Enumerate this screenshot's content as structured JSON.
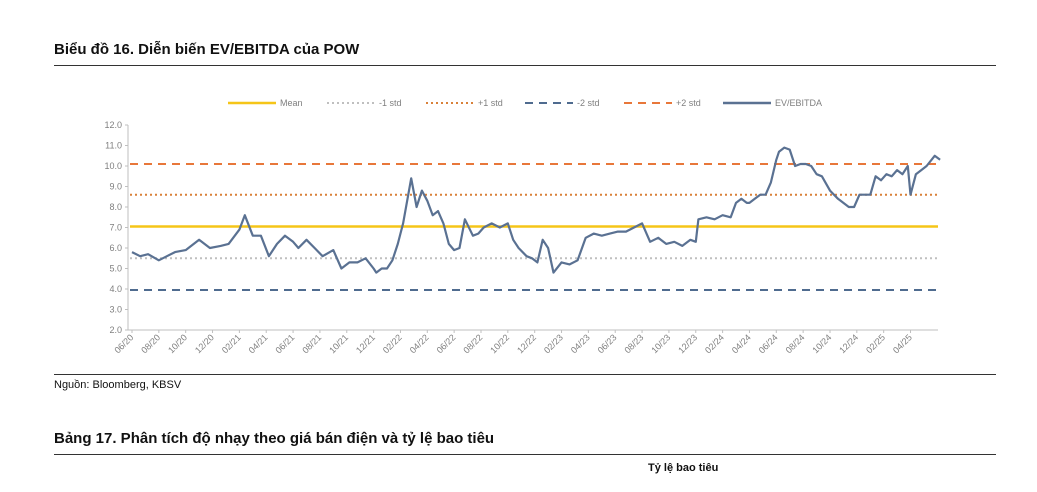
{
  "figure_title": "Biểu đồ 16. Diễn biến EV/EBITDA của POW",
  "source": "Nguồn: Bloomberg, KBSV",
  "table_title": "Bảng 17. Phân tích độ nhạy theo giá bán điện và tỷ lệ bao tiêu",
  "table_header": "Tỷ lệ bao tiêu",
  "chart_data": {
    "type": "line",
    "title": "",
    "xlabel": "",
    "ylabel": "",
    "ylim": [
      2.0,
      12.0
    ],
    "yticks": [
      "2.0",
      "3.0",
      "4.0",
      "5.0",
      "6.0",
      "7.0",
      "8.0",
      "9.0",
      "10.0",
      "11.0",
      "12.0"
    ],
    "xticks": [
      "06/20",
      "08/20",
      "10/20",
      "12/20",
      "02/21",
      "04/21",
      "06/21",
      "08/21",
      "10/21",
      "12/21",
      "02/22",
      "04/22",
      "06/22",
      "08/22",
      "10/22",
      "12/22",
      "02/23",
      "04/23",
      "06/23",
      "08/23",
      "10/23",
      "12/23",
      "02/24",
      "04/24",
      "06/24",
      "08/24",
      "10/24",
      "12/24",
      "02/25",
      "04/25"
    ],
    "legend_position": "top",
    "grid": false,
    "colors": {
      "mean": "#f5c518",
      "minus1": "#bfbfbf",
      "plus1": "#d9813a",
      "minus2": "#4f6b8f",
      "plus2": "#e8773a",
      "ev": "#5a7192"
    },
    "reference_lines": [
      {
        "name": "Mean",
        "value": 7.05
      },
      {
        "name": "-1 std",
        "value": 5.5
      },
      {
        "name": "+1 std",
        "value": 8.6
      },
      {
        "name": "-2 std",
        "value": 3.95
      },
      {
        "name": "+2 std",
        "value": 10.1
      }
    ],
    "series_name": "EV/EBITDA",
    "series": [
      {
        "name": "EV/EBITDA",
        "x_index": [
          0,
          0.3,
          0.6,
          1,
          1.3,
          1.6,
          2,
          2.5,
          2.9,
          3.3,
          3.6,
          4,
          4.2,
          4.5,
          4.8,
          5.1,
          5.4,
          5.7,
          6,
          6.2,
          6.5,
          6.8,
          7.1,
          7.5,
          7.8,
          8.1,
          8.4,
          8.7,
          9,
          9.1,
          9.3,
          9.5,
          9.7,
          9.9,
          10.1,
          10.4,
          10.6,
          10.8,
          11,
          11.2,
          11.4,
          11.6,
          11.8,
          12,
          12.2,
          12.4,
          12.7,
          12.9,
          13.1,
          13.4,
          13.7,
          14,
          14.2,
          14.4,
          14.7,
          14.9,
          15.1,
          15.3,
          15.5,
          15.7,
          16,
          16.3,
          16.6,
          16.9,
          17.2,
          17.5,
          17.8,
          18.1,
          18.4,
          18.7,
          19,
          19.3,
          19.6,
          19.9,
          20.2,
          20.5,
          20.8,
          21,
          21.1,
          21.4,
          21.7,
          22,
          22.3,
          22.5,
          22.7,
          22.9,
          23,
          23.2,
          23.4,
          23.6,
          23.8,
          24,
          24.1,
          24.3,
          24.5,
          24.7,
          24.9,
          25.1,
          25.3,
          25.5,
          25.7,
          26,
          26.3,
          26.5,
          26.7,
          26.9,
          27.1,
          27.3,
          27.5,
          27.7,
          27.9,
          28.1,
          28.3,
          28.5,
          28.7,
          28.9,
          29,
          29.2,
          29.4,
          29.6,
          29.9,
          30.1
        ],
        "values": [
          5.8,
          5.6,
          5.7,
          5.4,
          5.6,
          5.8,
          5.9,
          6.4,
          6.0,
          6.1,
          6.2,
          6.9,
          7.6,
          6.6,
          6.6,
          5.6,
          6.2,
          6.6,
          6.3,
          6.0,
          6.4,
          6.0,
          5.6,
          5.9,
          5.0,
          5.3,
          5.3,
          5.5,
          5.0,
          4.8,
          5.0,
          5.0,
          5.4,
          6.2,
          7.2,
          9.4,
          8.0,
          8.8,
          8.3,
          7.6,
          7.8,
          7.2,
          6.2,
          5.9,
          6.0,
          7.4,
          6.6,
          6.7,
          7.0,
          7.2,
          7.0,
          7.2,
          6.4,
          6.0,
          5.6,
          5.5,
          5.3,
          6.4,
          6.0,
          4.8,
          5.3,
          5.2,
          5.4,
          6.5,
          6.7,
          6.6,
          6.7,
          6.8,
          6.8,
          7.0,
          7.2,
          6.3,
          6.5,
          6.2,
          6.3,
          6.1,
          6.4,
          6.3,
          7.4,
          7.5,
          7.4,
          7.6,
          7.5,
          8.2,
          8.4,
          8.2,
          8.2,
          8.4,
          8.6,
          8.6,
          9.2,
          10.3,
          10.7,
          10.9,
          10.8,
          10.0,
          10.1,
          10.1,
          10.0,
          9.6,
          9.5,
          8.8,
          8.4,
          8.2,
          8.0,
          8.0,
          8.6,
          8.6,
          8.6,
          9.5,
          9.3,
          9.6,
          9.5,
          9.8,
          9.6,
          10.0,
          8.6,
          9.6,
          9.8,
          10.0,
          10.5,
          10.3
        ]
      }
    ]
  }
}
